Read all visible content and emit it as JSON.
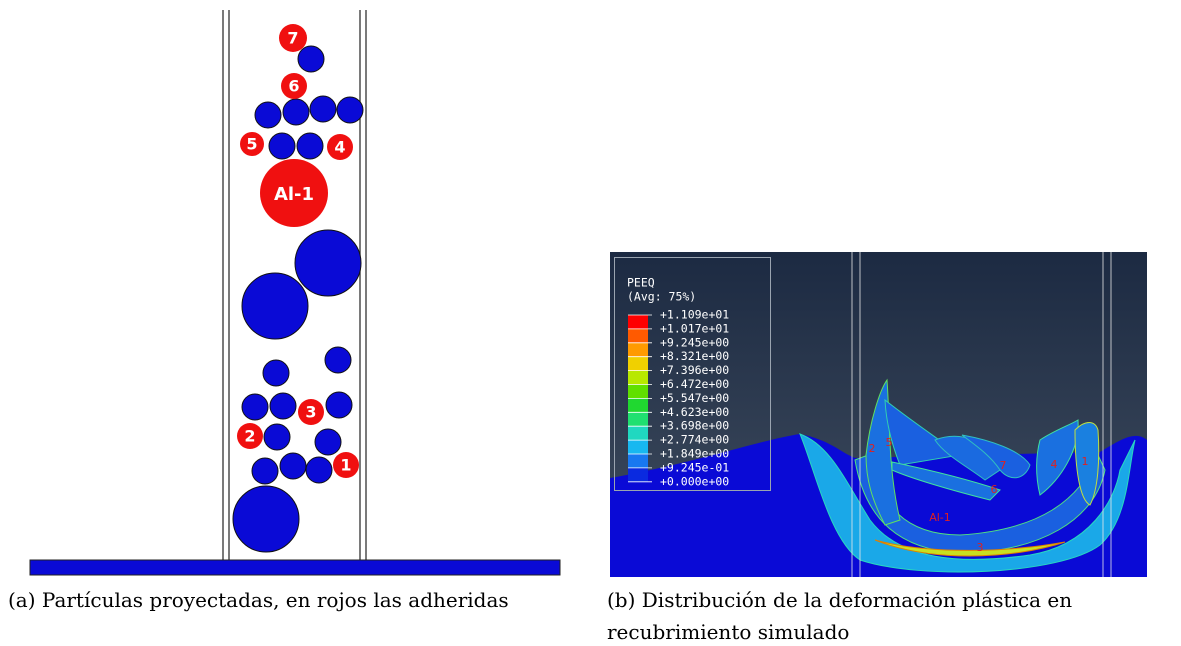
{
  "panel_a": {
    "particles": [
      "7",
      "6",
      "5",
      "4",
      "Al-1",
      "3",
      "2",
      "1"
    ],
    "caption": "(a) Partículas proyectadas, en rojos las adheridas"
  },
  "panel_b": {
    "labels": [
      "1",
      "2",
      "3",
      "4",
      "5",
      "6",
      "7",
      "Al-1"
    ],
    "legend": {
      "title": "PEEQ",
      "subtitle": "(Avg: 75%)",
      "values": [
        "+1.109e+01",
        "+1.017e+01",
        "+9.245e+00",
        "+8.321e+00",
        "+7.396e+00",
        "+6.472e+00",
        "+5.547e+00",
        "+4.623e+00",
        "+3.698e+00",
        "+2.774e+00",
        "+1.849e+00",
        "+9.245e-01",
        "+0.000e+00"
      ]
    },
    "caption": "(b) Distribución de la deformación plástica en recubrimiento simulado"
  }
}
